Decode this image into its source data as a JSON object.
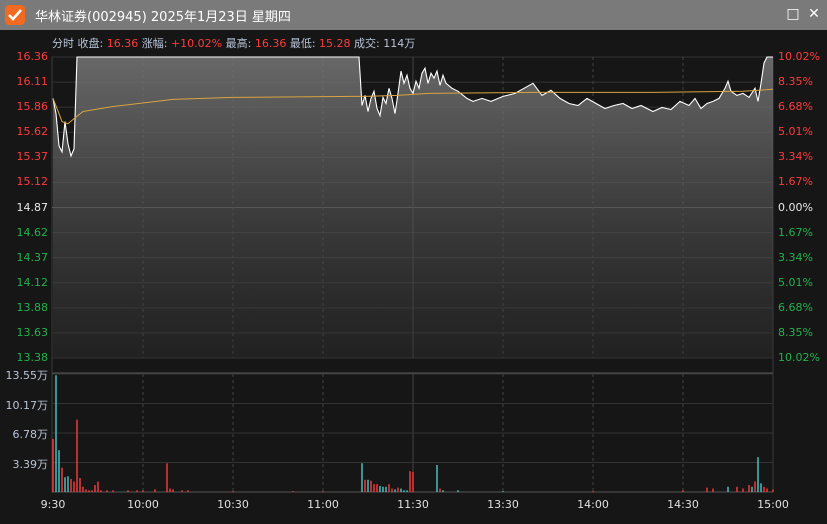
{
  "window": {
    "title": "华林证券(002945) 2025年1月23日 星期四",
    "controls": {
      "maximize": "□",
      "close": "✕"
    }
  },
  "info": {
    "mode": "分时",
    "close_label": "收盘:",
    "close": "16.36",
    "change_label": "涨幅:",
    "change": "+10.02%",
    "high_label": "最高:",
    "high": "16.36",
    "low_label": "最低:",
    "low": "15.28",
    "vol_label": "成交:",
    "vol": "114万"
  },
  "colors": {
    "up": "#ff3b3b",
    "down": "#22b14c",
    "volume_up": "#ff3b3b",
    "volume_down": "#4ec9c9",
    "price_line": "#ffffff",
    "avg_line": "#d9a441",
    "grid": "#3a3a3a"
  },
  "chart_data": [
    {
      "type": "line",
      "prev_close": 14.87,
      "ylim": [
        13.38,
        16.36
      ],
      "y_ticks_left": [
        "16.36",
        "16.11",
        "15.86",
        "15.62",
        "15.37",
        "15.12",
        "14.87",
        "14.62",
        "14.37",
        "14.12",
        "13.88",
        "13.63",
        "13.38"
      ],
      "y_ticks_right": [
        "10.02%",
        "8.35%",
        "6.68%",
        "5.01%",
        "3.34%",
        "1.67%",
        "0.00%",
        "1.67%",
        "3.34%",
        "5.01%",
        "6.68%",
        "8.35%",
        "10.02%"
      ],
      "x_ticks": [
        "9:30",
        "10:00",
        "10:30",
        "11:00",
        "11:30",
        "13:30",
        "14:00",
        "14:30",
        "15:00"
      ],
      "x_unit": "trading minute from 9:30",
      "series": [
        {
          "points": [
            [
              0,
              15.95
            ],
            [
              1,
              15.8
            ],
            [
              2,
              15.48
            ],
            [
              3,
              15.42
            ],
            [
              4,
              15.72
            ],
            [
              5,
              15.5
            ],
            [
              6,
              15.38
            ],
            [
              7,
              15.45
            ],
            [
              8,
              16.36
            ],
            [
              102,
              16.36
            ],
            [
              103,
              15.88
            ],
            [
              104,
              15.98
            ],
            [
              105,
              15.82
            ],
            [
              106,
              15.95
            ],
            [
              107,
              16.02
            ],
            [
              108,
              15.85
            ],
            [
              109,
              15.78
            ],
            [
              110,
              15.96
            ],
            [
              111,
              15.9
            ],
            [
              112,
              16.05
            ],
            [
              113,
              15.95
            ],
            [
              114,
              15.8
            ],
            [
              115,
              16.0
            ],
            [
              116,
              16.22
            ],
            [
              117,
              16.1
            ],
            [
              118,
              16.18
            ],
            [
              119,
              16.05
            ],
            [
              120,
              16.0
            ],
            [
              121,
              16.12
            ],
            [
              122,
              16.05
            ],
            [
              123,
              16.2
            ],
            [
              124,
              16.25
            ],
            [
              125,
              16.1
            ],
            [
              126,
              16.2
            ],
            [
              127,
              16.15
            ],
            [
              128,
              16.22
            ],
            [
              129,
              16.08
            ],
            [
              130,
              16.18
            ],
            [
              131,
              16.1
            ],
            [
              133,
              16.05
            ],
            [
              135,
              16.02
            ],
            [
              138,
              15.95
            ],
            [
              140,
              15.92
            ],
            [
              143,
              15.95
            ],
            [
              146,
              15.92
            ],
            [
              150,
              15.97
            ],
            [
              154,
              16.0
            ],
            [
              157,
              16.05
            ],
            [
              160,
              16.1
            ],
            [
              163,
              15.98
            ],
            [
              166,
              16.03
            ],
            [
              169,
              15.95
            ],
            [
              172,
              15.9
            ],
            [
              175,
              15.88
            ],
            [
              178,
              15.95
            ],
            [
              181,
              15.9
            ],
            [
              184,
              15.85
            ],
            [
              187,
              15.88
            ],
            [
              190,
              15.9
            ],
            [
              193,
              15.85
            ],
            [
              196,
              15.88
            ],
            [
              200,
              15.82
            ],
            [
              203,
              15.86
            ],
            [
              206,
              15.84
            ],
            [
              209,
              15.92
            ],
            [
              212,
              15.88
            ],
            [
              214,
              15.95
            ],
            [
              216,
              15.85
            ],
            [
              218,
              15.9
            ],
            [
              220,
              15.92
            ],
            [
              222,
              15.95
            ],
            [
              224,
              16.05
            ],
            [
              225,
              16.12
            ],
            [
              226,
              16.02
            ],
            [
              228,
              15.98
            ],
            [
              230,
              16.0
            ],
            [
              232,
              15.96
            ],
            [
              234,
              16.05
            ],
            [
              235,
              15.92
            ],
            [
              236,
              16.1
            ],
            [
              237,
              16.3
            ],
            [
              238,
              16.36
            ],
            [
              240,
              16.36
            ]
          ]
        },
        {
          "points": [
            [
              0,
              15.95
            ],
            [
              2,
              15.8
            ],
            [
              3,
              15.72
            ],
            [
              5,
              15.7
            ],
            [
              7,
              15.75
            ],
            [
              10,
              15.82
            ],
            [
              20,
              15.87
            ],
            [
              40,
              15.94
            ],
            [
              60,
              15.96
            ],
            [
              100,
              15.97
            ],
            [
              104,
              15.97
            ],
            [
              115,
              15.98
            ],
            [
              125,
              16.0
            ],
            [
              160,
              16.01
            ],
            [
              200,
              16.01
            ],
            [
              230,
              16.02
            ],
            [
              240,
              16.04
            ]
          ]
        }
      ]
    },
    {
      "type": "bar",
      "ylim": [
        0,
        13.55
      ],
      "y_ticks": [
        "13.55万",
        "10.17万",
        "6.78万",
        "3.39万"
      ],
      "bars": [
        [
          0,
          6.1,
          "up"
        ],
        [
          1,
          13.4,
          "down"
        ],
        [
          2,
          4.8,
          "down"
        ],
        [
          3,
          2.8,
          "up"
        ],
        [
          4,
          1.7,
          "down"
        ],
        [
          5,
          1.8,
          "down"
        ],
        [
          6,
          1.5,
          "up"
        ],
        [
          7,
          1.2,
          "up"
        ],
        [
          8,
          8.3,
          "up"
        ],
        [
          9,
          1.6,
          "up"
        ],
        [
          10,
          0.6,
          "up"
        ],
        [
          11,
          0.3,
          "up"
        ],
        [
          12,
          0.2,
          "up"
        ],
        [
          13,
          0.2,
          "up"
        ],
        [
          14,
          0.8,
          "up"
        ],
        [
          15,
          1.2,
          "up"
        ],
        [
          16,
          0.2,
          "up"
        ],
        [
          18,
          0.2,
          "up"
        ],
        [
          20,
          0.2,
          "up"
        ],
        [
          25,
          0.2,
          "up"
        ],
        [
          28,
          0.2,
          "up"
        ],
        [
          30,
          0.2,
          "up"
        ],
        [
          34,
          0.3,
          "up"
        ],
        [
          38,
          3.3,
          "up"
        ],
        [
          39,
          0.4,
          "up"
        ],
        [
          40,
          0.3,
          "up"
        ],
        [
          43,
          0.2,
          "up"
        ],
        [
          45,
          0.2,
          "up"
        ],
        [
          60,
          0.1,
          "up"
        ],
        [
          80,
          0.1,
          "up"
        ],
        [
          90,
          0.1,
          "up"
        ],
        [
          103,
          3.3,
          "down"
        ],
        [
          104,
          1.4,
          "up"
        ],
        [
          105,
          1.4,
          "down"
        ],
        [
          106,
          1.3,
          "up"
        ],
        [
          107,
          0.9,
          "up"
        ],
        [
          108,
          0.9,
          "up"
        ],
        [
          109,
          0.7,
          "down"
        ],
        [
          110,
          0.6,
          "down"
        ],
        [
          111,
          0.6,
          "down"
        ],
        [
          112,
          0.9,
          "up"
        ],
        [
          113,
          0.4,
          "up"
        ],
        [
          114,
          0.3,
          "down"
        ],
        [
          115,
          0.5,
          "up"
        ],
        [
          116,
          0.4,
          "down"
        ],
        [
          117,
          0.2,
          "down"
        ],
        [
          118,
          0.2,
          "down"
        ],
        [
          119,
          2.4,
          "up"
        ],
        [
          120,
          2.3,
          "up"
        ],
        [
          128,
          3.1,
          "down"
        ],
        [
          129,
          0.4,
          "up"
        ],
        [
          130,
          0.2,
          "down"
        ],
        [
          135,
          0.2,
          "down"
        ],
        [
          150,
          0.1,
          "down"
        ],
        [
          180,
          0.1,
          "up"
        ],
        [
          210,
          0.2,
          "up"
        ],
        [
          218,
          0.5,
          "up"
        ],
        [
          220,
          0.4,
          "up"
        ],
        [
          225,
          0.6,
          "down"
        ],
        [
          228,
          0.6,
          "up"
        ],
        [
          230,
          0.4,
          "up"
        ],
        [
          232,
          0.8,
          "up"
        ],
        [
          233,
          0.6,
          "down"
        ],
        [
          234,
          1.2,
          "up"
        ],
        [
          235,
          4.0,
          "down"
        ],
        [
          236,
          1.0,
          "down"
        ],
        [
          237,
          0.6,
          "up"
        ],
        [
          238,
          0.4,
          "up"
        ],
        [
          240,
          0.3,
          "up"
        ]
      ]
    }
  ]
}
